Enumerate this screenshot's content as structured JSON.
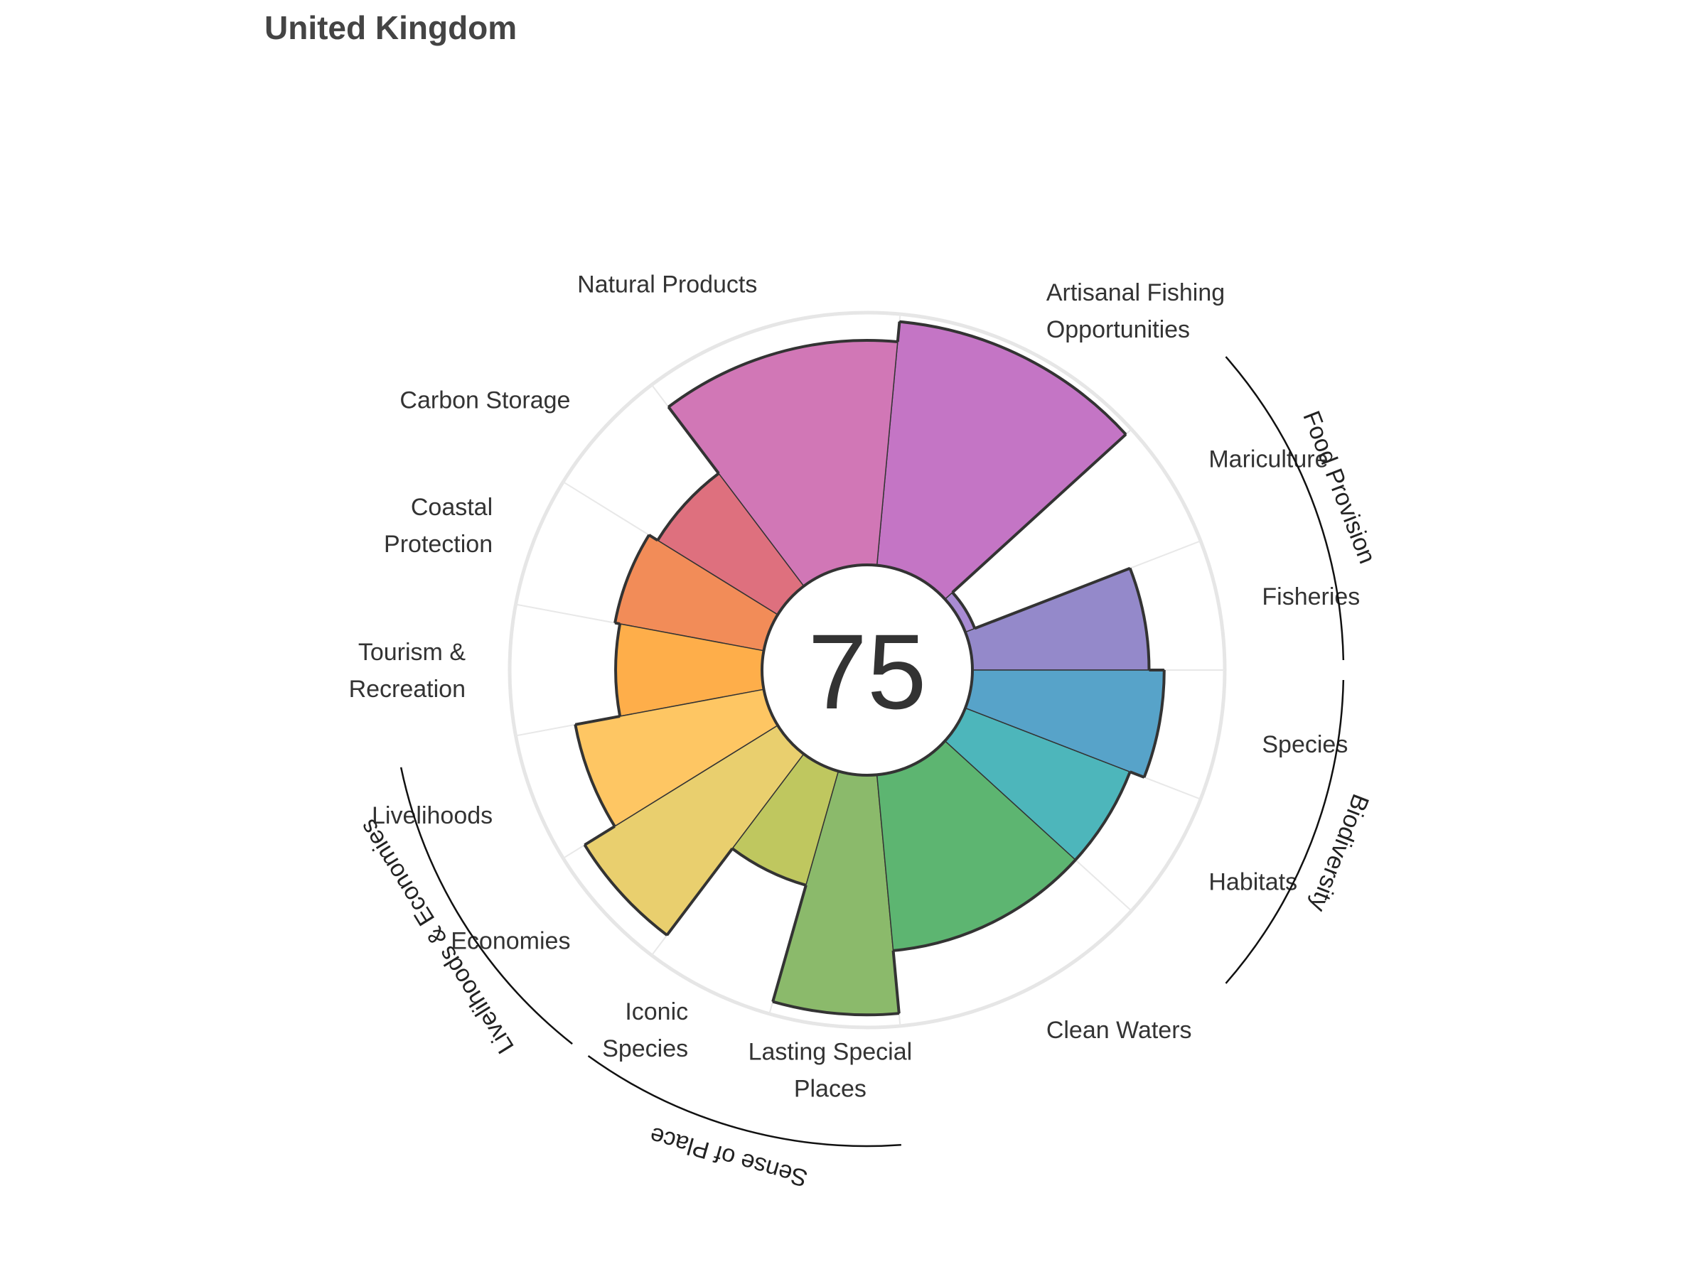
{
  "title": "United Kingdom",
  "chart_data": {
    "type": "polar-bar",
    "title": "United Kingdom",
    "score": "75",
    "range": [
      0,
      100
    ],
    "goals": [
      {
        "key": "fisheries",
        "name": "Fisheries",
        "label": [
          "Fisheries"
        ],
        "value": 70,
        "weight": 1,
        "color": "#9489ca"
      },
      {
        "key": "mariculture",
        "name": "Mariculture",
        "label": [
          "Mariculture"
        ],
        "value": 4,
        "weight": 1,
        "color": "#a98bd3"
      },
      {
        "key": "artisanal_fishing",
        "name": "Artisanal Fishing Opportunities",
        "label": [
          "Artisanal Fishing",
          "Opportunities"
        ],
        "value": 97,
        "weight": 2,
        "color": "#c475c5"
      },
      {
        "key": "natural_products",
        "name": "Natural Products",
        "label": [
          "Natural Products"
        ],
        "value": 89,
        "weight": 2,
        "color": "#d177b6"
      },
      {
        "key": "carbon_storage",
        "name": "Carbon Storage",
        "label": [
          "Carbon Storage"
        ],
        "value": 56,
        "weight": 1,
        "color": "#de707e"
      },
      {
        "key": "coastal_protection",
        "name": "Coastal Protection",
        "label": [
          "Coastal",
          "Protection"
        ],
        "value": 60,
        "weight": 1,
        "color": "#f28c58"
      },
      {
        "key": "tourism_recreation",
        "name": "Tourism & Recreation",
        "label": [
          "Tourism &",
          "Recreation"
        ],
        "value": 58,
        "weight": 1,
        "color": "#feae4a"
      },
      {
        "key": "livelihoods",
        "name": "Livelihoods",
        "label": [
          "Livelihoods"
        ],
        "value": 76,
        "weight": 1,
        "color": "#fec663"
      },
      {
        "key": "economies",
        "name": "Economies",
        "label": [
          "Economies"
        ],
        "value": 90,
        "weight": 1,
        "color": "#e9cf6e"
      },
      {
        "key": "iconic_species",
        "name": "Iconic Species",
        "label": [
          "Iconic",
          "Species"
        ],
        "value": 47,
        "weight": 1,
        "color": "#bfc75f"
      },
      {
        "key": "lasting_special_places",
        "name": "Lasting Special Places",
        "label": [
          "Lasting Special",
          "Places"
        ],
        "value": 95,
        "weight": 1,
        "color": "#8bba6b"
      },
      {
        "key": "clean_waters",
        "name": "Clean Waters",
        "label": [
          "Clean Waters"
        ],
        "value": 70,
        "weight": 2,
        "color": "#5db571"
      },
      {
        "key": "habitats",
        "name": "Habitats",
        "label": [
          "Habitats"
        ],
        "value": 70,
        "weight": 1,
        "color": "#4db6bb"
      },
      {
        "key": "species",
        "name": "Species",
        "label": [
          "Species"
        ],
        "value": 76,
        "weight": 1,
        "color": "#57a3c9"
      }
    ],
    "groups": [
      {
        "name": "Food Provision",
        "from": "fisheries",
        "to": "mariculture"
      },
      {
        "name": "Biodiversity",
        "from": "habitats",
        "to": "species"
      },
      {
        "name": "Sense of Place",
        "from": "iconic_species",
        "to": "lasting_special_places"
      },
      {
        "name": "Livelihoods & Economies",
        "from": "livelihoods",
        "to": "economies"
      }
    ]
  }
}
